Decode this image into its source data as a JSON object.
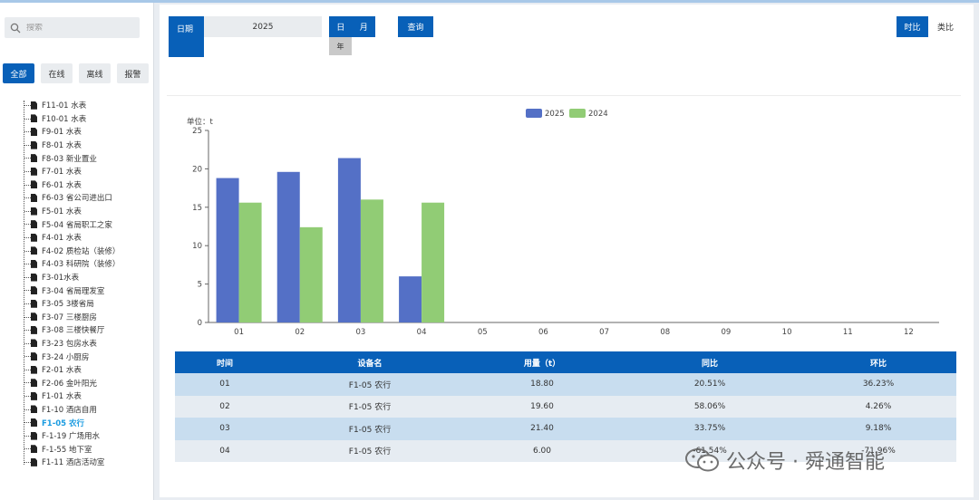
{
  "search": {
    "placeholder": "搜索"
  },
  "filters": [
    "全部",
    "在线",
    "离线",
    "报警"
  ],
  "tree": [
    "F11-01 水表",
    "F10-01 水表",
    "F9-01 水表",
    "F8-01 水表",
    "F8-03 新业置业",
    "F7-01 水表",
    "F6-01 水表",
    "F6-03 省公司进出口",
    "F5-01 水表",
    "F5-04 省局职工之家",
    "F4-01 水表",
    "F4-02 质检站（装修）",
    "F4-03 科研院（装修）",
    "F3-01水表",
    "F3-04 省局理发室",
    "F3-05 3楼省局",
    "F3-07 三楼厨房",
    "F3-08 三楼快餐厅",
    "F3-23 包房水表",
    "F3-24 小厨房",
    "F2-01 水表",
    "F2-06 金叶阳光",
    "F1-01 水表",
    "F1-10 酒店自用",
    "F1-05 农行",
    "F-1-19 广场用水",
    "F-1-55 地下室",
    "F1-11 酒店活动室"
  ],
  "selected_index": 24,
  "controls": {
    "date_label": "日期",
    "year_value": "2025",
    "gran_day": "日",
    "gran_month": "月",
    "gran_year": "年",
    "query_label": "查询",
    "yoy_label": "时比",
    "mom_label": "类比"
  },
  "chart_data": {
    "type": "bar",
    "unit_label": "单位：t",
    "categories": [
      "01",
      "02",
      "03",
      "04",
      "05",
      "06",
      "07",
      "08",
      "09",
      "10",
      "11",
      "12"
    ],
    "series": [
      {
        "name": "2025",
        "color": "#5470c6",
        "values": [
          18.8,
          19.6,
          21.4,
          6.0,
          null,
          null,
          null,
          null,
          null,
          null,
          null,
          null
        ]
      },
      {
        "name": "2024",
        "color": "#91cc75",
        "values": [
          15.6,
          12.4,
          16.0,
          15.6,
          null,
          null,
          null,
          null,
          null,
          null,
          null,
          null
        ]
      }
    ],
    "ylim": [
      0,
      25
    ],
    "yticks": [
      0,
      5,
      10,
      15,
      20,
      25
    ],
    "legend": "top-center"
  },
  "table": {
    "headers": [
      "时间",
      "设备名",
      "用量（t）",
      "同比",
      "环比"
    ],
    "rows": [
      [
        "01",
        "F1-05 农行",
        "18.80",
        "20.51%",
        "36.23%"
      ],
      [
        "02",
        "F1-05 农行",
        "19.60",
        "58.06%",
        "4.26%"
      ],
      [
        "03",
        "F1-05 农行",
        "21.40",
        "33.75%",
        "9.18%"
      ],
      [
        "04",
        "F1-05 农行",
        "6.00",
        "-61.54%",
        "-71.96%"
      ]
    ]
  },
  "watermark": "公众号 · 舜通智能"
}
